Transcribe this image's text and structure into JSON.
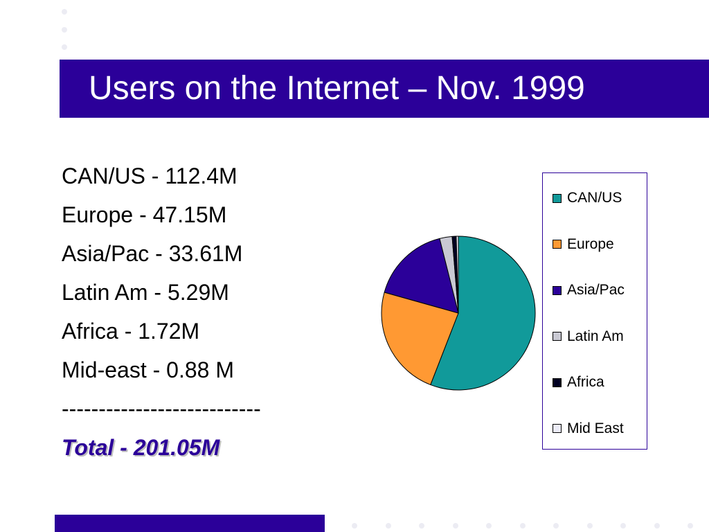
{
  "slide": {
    "title": "Users on the Internet – Nov. 1999"
  },
  "stats": {
    "lines": [
      "CAN/US - 112.4M",
      "Europe - 47.15M",
      "Asia/Pac - 33.61M",
      "Latin Am - 5.29M",
      "Africa - 1.72M",
      "Mid-east - 0.88 M",
      "---------------------------"
    ],
    "total": "Total - 201.05M"
  },
  "colors": {
    "accent": "#2b0099"
  },
  "chart_data": {
    "type": "pie",
    "categories": [
      "CAN/US",
      "Europe",
      "Asia/Pac",
      "Latin Am",
      "Africa",
      "Mid East"
    ],
    "values": [
      112.4,
      47.15,
      33.61,
      5.29,
      1.72,
      0.88
    ],
    "colors": [
      "#119a9a",
      "#ff9933",
      "#2b0099",
      "#c9c9d3",
      "#000022",
      "#ececf8"
    ],
    "legend_position": "right",
    "title": "",
    "xlabel": "",
    "ylabel": ""
  }
}
